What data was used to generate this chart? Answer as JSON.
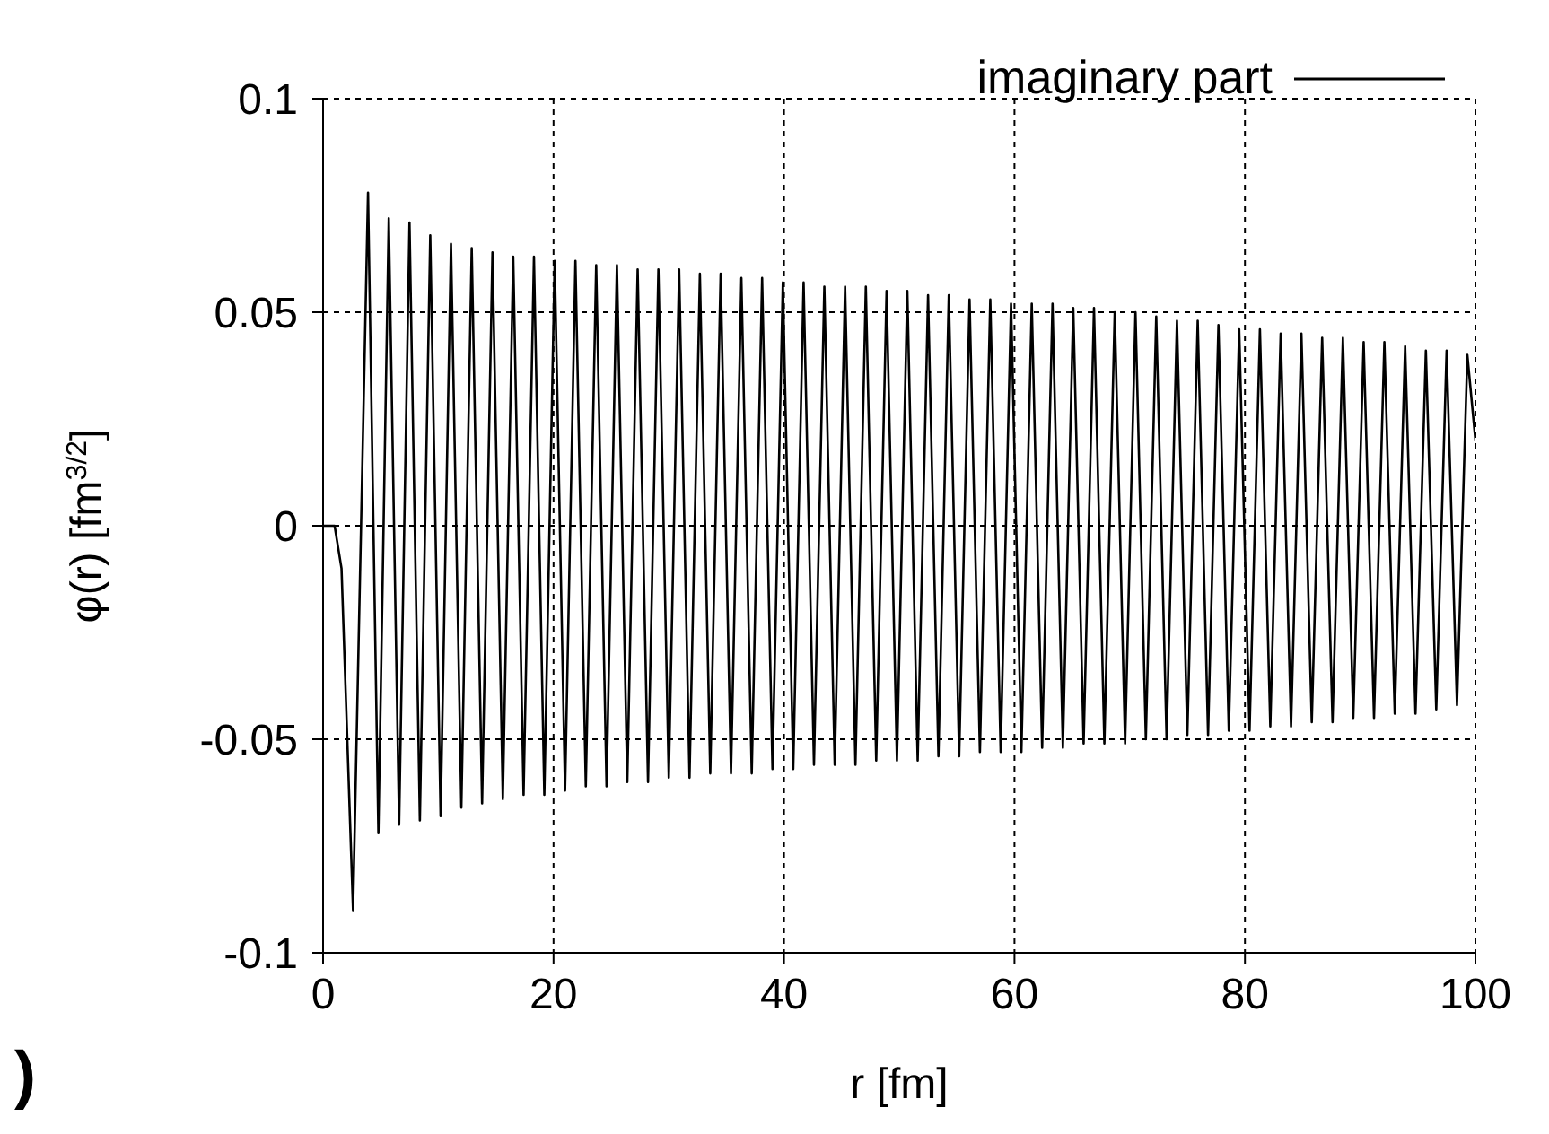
{
  "chart_data": {
    "type": "line",
    "xlabel": "r [fm]",
    "ylabel": "φ(r) [fm$^{3/2}$]",
    "annotations": [
      ")"
    ],
    "xlim": [
      0,
      100
    ],
    "xticks": [
      0,
      20,
      40,
      60,
      80,
      100
    ],
    "ylim": [
      -0.1,
      0.1
    ],
    "yticks": [
      -0.1,
      -0.05,
      0,
      0.05,
      0.1
    ],
    "grid": true,
    "legend": "top right",
    "marker": "none",
    "line_style": "solid",
    "series": [
      {
        "name": "imaginary part",
        "color": "#000000",
        "x": [
          0,
          1,
          1.6,
          2.6,
          3.9,
          4.8,
          5.7,
          6.6,
          7.5,
          8.4,
          9.3,
          10.2,
          11.1,
          12.0,
          12.9,
          13.8,
          14.7,
          15.6,
          16.5,
          17.4,
          18.3,
          19.2,
          20.1,
          21.0,
          21.9,
          22.8,
          23.7,
          24.6,
          25.5,
          26.4,
          27.3,
          28.2,
          29.1,
          30.0,
          30.9,
          31.8,
          32.7,
          33.6,
          34.5,
          35.4,
          36.3,
          37.2,
          38.1,
          39.0,
          39.9,
          40.8,
          41.7,
          42.6,
          43.5,
          44.4,
          45.3,
          46.2,
          47.1,
          48.0,
          48.9,
          49.8,
          50.7,
          51.6,
          52.5,
          53.4,
          54.3,
          55.2,
          56.1,
          57.0,
          57.9,
          58.8,
          59.7,
          60.6,
          61.5,
          62.4,
          63.3,
          64.2,
          65.1,
          66.0,
          66.9,
          67.8,
          68.7,
          69.6,
          70.5,
          71.4,
          72.3,
          73.2,
          74.1,
          75.0,
          75.9,
          76.8,
          77.7,
          78.6,
          79.5,
          80.4,
          81.3,
          82.2,
          83.1,
          84.0,
          84.9,
          85.8,
          86.7,
          87.6,
          88.5,
          89.4,
          90.3,
          91.2,
          92.1,
          93.0,
          93.9,
          94.8,
          95.7,
          96.6,
          97.5,
          98.4,
          99.3,
          100
        ],
        "values": [
          0,
          0,
          -0.01,
          -0.09,
          0.078,
          -0.072,
          0.072,
          -0.07,
          0.071,
          -0.069,
          0.068,
          -0.068,
          0.066,
          -0.066,
          0.065,
          -0.065,
          0.064,
          -0.064,
          0.063,
          -0.063,
          0.063,
          -0.063,
          0.062,
          -0.062,
          0.062,
          -0.061,
          0.061,
          -0.061,
          0.061,
          -0.06,
          0.06,
          -0.06,
          0.06,
          -0.059,
          0.06,
          -0.059,
          0.059,
          -0.058,
          0.059,
          -0.058,
          0.058,
          -0.058,
          0.058,
          -0.057,
          0.057,
          -0.057,
          0.057,
          -0.056,
          0.056,
          -0.056,
          0.056,
          -0.056,
          0.056,
          -0.055,
          0.055,
          -0.055,
          0.055,
          -0.055,
          0.054,
          -0.054,
          0.054,
          -0.054,
          0.053,
          -0.053,
          0.053,
          -0.053,
          0.052,
          -0.053,
          0.052,
          -0.052,
          0.052,
          -0.052,
          0.051,
          -0.051,
          0.051,
          -0.051,
          0.05,
          -0.051,
          0.05,
          -0.05,
          0.049,
          -0.05,
          0.048,
          -0.049,
          0.048,
          -0.049,
          0.047,
          -0.048,
          0.046,
          -0.048,
          0.046,
          -0.047,
          0.045,
          -0.047,
          0.045,
          -0.046,
          0.044,
          -0.046,
          0.044,
          -0.045,
          0.043,
          -0.045,
          0.043,
          -0.044,
          0.042,
          -0.044,
          0.041,
          -0.043,
          0.041,
          -0.042,
          0.04,
          0.02
        ]
      }
    ]
  }
}
